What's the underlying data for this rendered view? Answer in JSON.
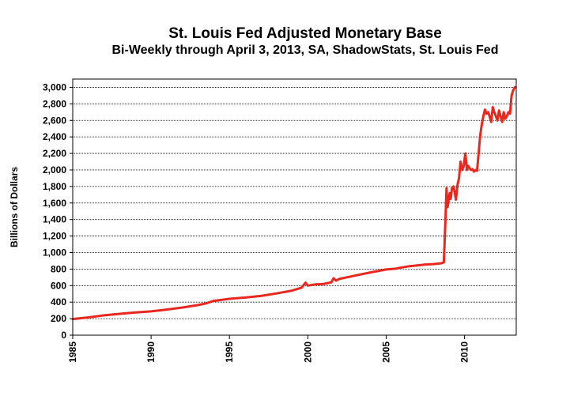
{
  "chart_data": {
    "type": "line",
    "title": "St. Louis Fed Adjusted Monetary Base",
    "subtitle": "Bi-Weekly through April 3, 2013, SA, ShadowStats, St. Louis Fed",
    "xlabel": "",
    "ylabel": "Billions of Dollars",
    "xlim": [
      1985,
      2013.3
    ],
    "ylim": [
      0,
      3100
    ],
    "x_ticks": [
      1985,
      1990,
      1995,
      2000,
      2005,
      2010
    ],
    "x_tick_labels": [
      "1985",
      "1990",
      "1995",
      "2000",
      "2005",
      "2010"
    ],
    "y_ticks": [
      0,
      200,
      400,
      600,
      800,
      1000,
      1200,
      1400,
      1600,
      1800,
      2000,
      2200,
      2400,
      2600,
      2800,
      3000
    ],
    "y_tick_labels": [
      "0",
      "200",
      "400",
      "600",
      "800",
      "1,000",
      "1,200",
      "1,400",
      "1,600",
      "1,800",
      "2,000",
      "2,200",
      "2,400",
      "2,600",
      "2,800",
      "3,000"
    ],
    "grid": true,
    "line_color": "#e8281e",
    "series": [
      {
        "x": [
          1985.0,
          1986.0,
          1987.0,
          1988.0,
          1989.0,
          1990.0,
          1991.0,
          1992.0,
          1993.0,
          1993.5,
          1994.0,
          1995.0,
          1996.0,
          1997.0,
          1998.0,
          1999.0,
          1999.6,
          1999.85,
          2000.0,
          2000.5,
          2001.0,
          2001.5,
          2001.65,
          2001.8,
          2002.0,
          2002.5,
          2003.0,
          2004.0,
          2005.0,
          2005.6,
          2006.0,
          2006.5,
          2007.0,
          2007.5,
          2008.0,
          2008.5,
          2008.68,
          2008.78,
          2008.85,
          2008.92,
          2009.0,
          2009.05,
          2009.12,
          2009.2,
          2009.3,
          2009.38,
          2009.45,
          2009.55,
          2009.65,
          2009.75,
          2009.85,
          2009.95,
          2010.05,
          2010.15,
          2010.22,
          2010.3,
          2010.4,
          2010.5,
          2010.6,
          2010.7,
          2010.8,
          2010.9,
          2011.0,
          2011.1,
          2011.2,
          2011.3,
          2011.4,
          2011.5,
          2011.6,
          2011.7,
          2011.8,
          2011.9,
          2012.0,
          2012.1,
          2012.2,
          2012.3,
          2012.4,
          2012.5,
          2012.6,
          2012.7,
          2012.8,
          2012.9,
          2013.0,
          2013.1,
          2013.2,
          2013.26
        ],
        "values": [
          195,
          215,
          240,
          258,
          275,
          288,
          310,
          335,
          365,
          385,
          415,
          440,
          455,
          475,
          505,
          540,
          575,
          635,
          600,
          615,
          620,
          640,
          690,
          660,
          680,
          700,
          720,
          760,
          795,
          805,
          820,
          835,
          845,
          855,
          860,
          870,
          880,
          1380,
          1780,
          1550,
          1650,
          1720,
          1650,
          1780,
          1800,
          1720,
          1640,
          1820,
          1900,
          2100,
          2000,
          2050,
          2200,
          2000,
          2050,
          2030,
          2000,
          2010,
          1980,
          2000,
          1990,
          2200,
          2420,
          2550,
          2650,
          2730,
          2680,
          2700,
          2650,
          2580,
          2760,
          2700,
          2650,
          2600,
          2720,
          2650,
          2580,
          2700,
          2620,
          2650,
          2700,
          2680,
          2900,
          2960,
          3000,
          3000
        ]
      }
    ]
  }
}
